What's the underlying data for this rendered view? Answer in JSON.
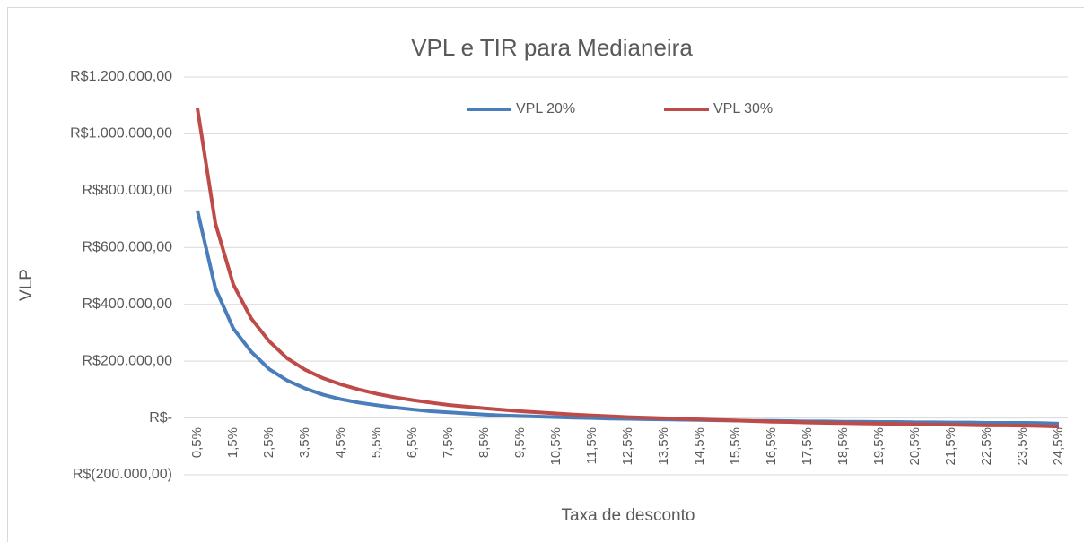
{
  "chart_data": {
    "type": "line",
    "title": "VPL e TIR  para Medianeira",
    "xlabel": "Taxa de desconto",
    "ylabel": "VLP",
    "categories": [
      "0,5%",
      null,
      "1,5%",
      null,
      "2,5%",
      null,
      "3,5%",
      null,
      "4,5%",
      null,
      "5,5%",
      null,
      "6,5%",
      null,
      "7,5%",
      null,
      "8,5%",
      null,
      "9,5%",
      null,
      "10,5%",
      null,
      "11,5%",
      null,
      "12,5%",
      null,
      "13,5%",
      null,
      "14,5%",
      null,
      "15,5%",
      null,
      "16,5%",
      null,
      "17,5%",
      null,
      "18,5%",
      null,
      "19,5%",
      null,
      "20,5%",
      null,
      "21,5%",
      null,
      "22,5%",
      null,
      "23,5%",
      null,
      "24,5%"
    ],
    "series": [
      {
        "name": "VPL 20%",
        "color": "#4a7ebb",
        "values": [
          730000,
          457000,
          315000,
          233000,
          172000,
          132000,
          104000,
          82000,
          66000,
          54000,
          45000,
          37000,
          30000,
          24000,
          20000,
          16000,
          12000,
          9000,
          7000,
          5000,
          3000,
          1000,
          0,
          -2000,
          -3000,
          -4000,
          -5000,
          -6000,
          -7000,
          -8000,
          -9000,
          -10000,
          -10000,
          -11000,
          -12000,
          -12000,
          -13000,
          -13000,
          -14000,
          -14000,
          -15000,
          -15000,
          -16000,
          -16000,
          -17000,
          -17000,
          -17000,
          -18000,
          -20000
        ]
      },
      {
        "name": "VPL 30%",
        "color": "#be4b48",
        "values": [
          1090000,
          685000,
          470000,
          350000,
          270000,
          210000,
          170000,
          140000,
          118000,
          100000,
          85000,
          73000,
          63000,
          54000,
          46000,
          40000,
          34000,
          29000,
          24000,
          20000,
          16000,
          12000,
          9000,
          6000,
          3000,
          1000,
          -1000,
          -3000,
          -5000,
          -7000,
          -9000,
          -11000,
          -13000,
          -14000,
          -16000,
          -17000,
          -18000,
          -19000,
          -20000,
          -21000,
          -22000,
          -23000,
          -24000,
          -25000,
          -26000,
          -26000,
          -27000,
          -28000,
          -30000
        ]
      }
    ],
    "ylim": [
      -200000,
      1200000
    ],
    "yticks": [
      {
        "value": -200000,
        "label": "R$(200.000,00)"
      },
      {
        "value": 0,
        "label": "R$-"
      },
      {
        "value": 200000,
        "label": "R$200.000,00"
      },
      {
        "value": 400000,
        "label": "R$400.000,00"
      },
      {
        "value": 600000,
        "label": "R$600.000,00"
      },
      {
        "value": 800000,
        "label": "R$800.000,00"
      },
      {
        "value": 1000000,
        "label": "R$1.000.000,00"
      },
      {
        "value": 1200000,
        "label": "R$1.200.000,00"
      }
    ],
    "grid": true,
    "legend": "top"
  }
}
